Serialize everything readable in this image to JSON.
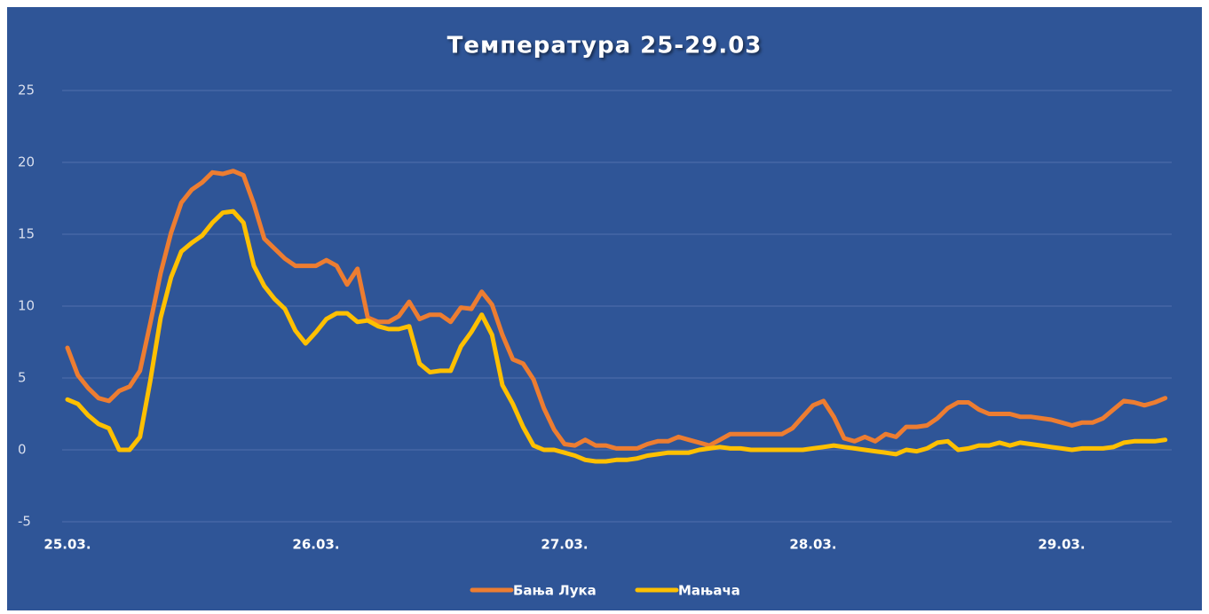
{
  "chart_data": {
    "type": "line",
    "title": "Температура 25-29.03",
    "categories": [
      "25.03.",
      null,
      null,
      null,
      null,
      null,
      null,
      null,
      null,
      null,
      null,
      null,
      null,
      null,
      null,
      null,
      null,
      null,
      null,
      null,
      null,
      null,
      null,
      null,
      "26.03.",
      null,
      null,
      null,
      null,
      null,
      null,
      null,
      null,
      null,
      null,
      null,
      null,
      null,
      null,
      null,
      null,
      null,
      null,
      null,
      null,
      null,
      null,
      null,
      "27.03.",
      null,
      null,
      null,
      null,
      null,
      null,
      null,
      null,
      null,
      null,
      null,
      null,
      null,
      null,
      null,
      null,
      null,
      null,
      null,
      null,
      null,
      null,
      null,
      "28.03.",
      null,
      null,
      null,
      null,
      null,
      null,
      null,
      null,
      null,
      null,
      null,
      null,
      null,
      null,
      null,
      null,
      null,
      null,
      null,
      null,
      null,
      null,
      null,
      "29.03.",
      null,
      null,
      null,
      null,
      null,
      null,
      null,
      null,
      null,
      null
    ],
    "series": [
      {
        "name": "Бања Лука",
        "color": "#ed7d31",
        "values": [
          7.1,
          5.2,
          4.3,
          3.6,
          3.4,
          4.1,
          4.4,
          5.5,
          8.8,
          12.3,
          15.1,
          17.2,
          18.1,
          18.6,
          19.3,
          19.2,
          19.4,
          19.1,
          17.1,
          14.7,
          14.0,
          13.3,
          12.8,
          12.8,
          12.8,
          13.2,
          12.8,
          11.5,
          12.6,
          9.2,
          8.9,
          8.9,
          9.3,
          10.3,
          9.1,
          9.4,
          9.4,
          8.9,
          9.9,
          9.8,
          11.0,
          10.1,
          8.0,
          6.3,
          6.0,
          4.9,
          2.9,
          1.4,
          0.4,
          0.3,
          0.7,
          0.3,
          0.3,
          0.1,
          0.1,
          0.1,
          0.4,
          0.6,
          0.6,
          0.9,
          0.7,
          0.5,
          0.3,
          0.7,
          1.1,
          1.1,
          1.1,
          1.1,
          1.1,
          1.1,
          1.5,
          2.3,
          3.1,
          3.4,
          2.3,
          0.8,
          0.6,
          0.9,
          0.6,
          1.1,
          0.9,
          1.6,
          1.6,
          1.7,
          2.2,
          2.9,
          3.3,
          3.3,
          2.8,
          2.5,
          2.5,
          2.5,
          2.3,
          2.3,
          2.2,
          2.1,
          1.9,
          1.7,
          1.9,
          1.9,
          2.2,
          2.8,
          3.4,
          3.3,
          3.1,
          3.3,
          3.6
        ]
      },
      {
        "name": "Мањача",
        "color": "#ffc000",
        "values": [
          3.5,
          3.2,
          2.4,
          1.8,
          1.5,
          0.0,
          0.0,
          0.9,
          4.8,
          9.2,
          12.0,
          13.8,
          14.4,
          14.9,
          15.8,
          16.5,
          16.6,
          15.8,
          12.8,
          11.4,
          10.5,
          9.8,
          8.3,
          7.4,
          8.2,
          9.1,
          9.5,
          9.5,
          8.9,
          9.0,
          8.6,
          8.4,
          8.4,
          8.6,
          6.0,
          5.4,
          5.5,
          5.5,
          7.2,
          8.2,
          9.4,
          8.0,
          4.5,
          3.2,
          1.6,
          0.3,
          0.0,
          0.0,
          -0.2,
          -0.4,
          -0.7,
          -0.8,
          -0.8,
          -0.7,
          -0.7,
          -0.6,
          -0.4,
          -0.3,
          -0.2,
          -0.2,
          -0.2,
          0.0,
          0.1,
          0.2,
          0.1,
          0.1,
          0.0,
          0.0,
          0.0,
          0.0,
          0.0,
          0.0,
          0.1,
          0.2,
          0.3,
          0.2,
          0.1,
          0.0,
          -0.1,
          -0.2,
          -0.3,
          0.0,
          -0.1,
          0.1,
          0.5,
          0.6,
          0.0,
          0.1,
          0.3,
          0.3,
          0.5,
          0.3,
          0.5,
          0.4,
          0.3,
          0.2,
          0.1,
          0.0,
          0.1,
          0.1,
          0.1,
          0.2,
          0.5,
          0.6,
          0.6,
          0.6,
          0.7
        ]
      }
    ],
    "ylim": [
      -5,
      25
    ],
    "yticks": [
      -5,
      0,
      5,
      10,
      15,
      20,
      25
    ],
    "grid": true,
    "legend": "bottom"
  }
}
